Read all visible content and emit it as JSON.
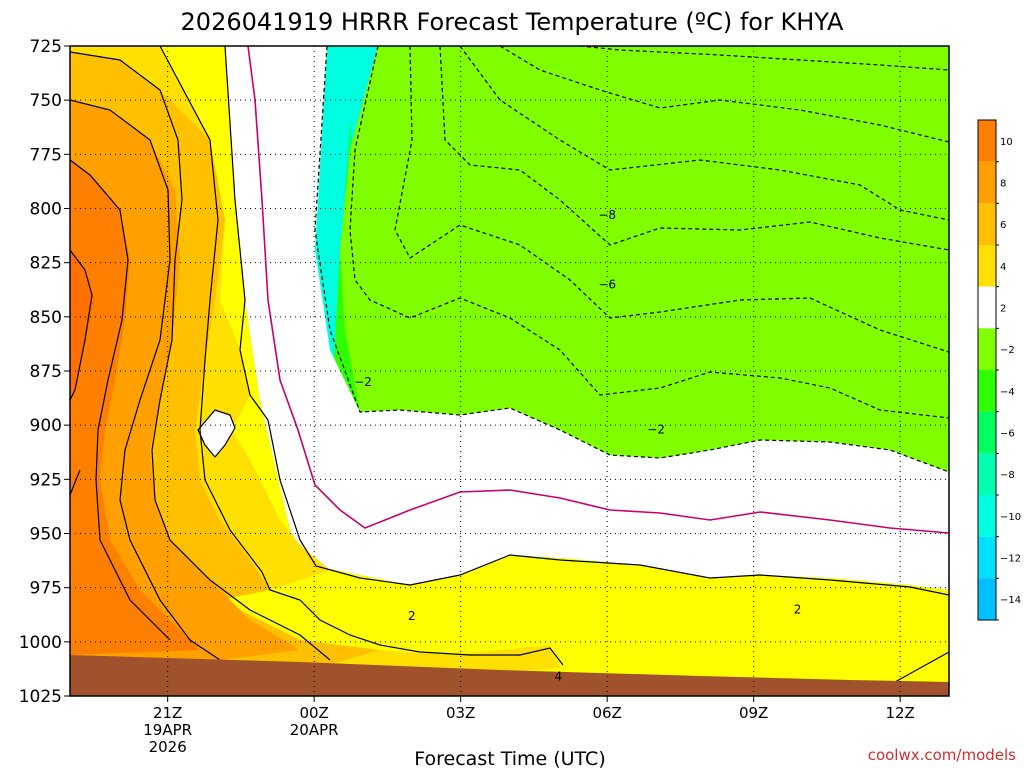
{
  "chart_data": {
    "type": "filled-contour",
    "title": "2026041919 HRRR Forecast Temperature (ºC) for KHYA",
    "xlabel": "Forecast Time (UTC)",
    "ylabel": "",
    "y_ticks": [
      "725",
      "750",
      "775",
      "800",
      "825",
      "850",
      "875",
      "900",
      "925",
      "950",
      "975",
      "1000",
      "1025"
    ],
    "ylim": [
      725,
      1025
    ],
    "y_reversed": true,
    "x_ticks": [
      {
        "hour": 2,
        "label": "21Z",
        "date": "19APR",
        "year": "2026"
      },
      {
        "hour": 5,
        "label": "00Z",
        "date": "20APR",
        "year": ""
      },
      {
        "hour": 8,
        "label": "03Z",
        "date": "",
        "year": ""
      },
      {
        "hour": 11,
        "label": "06Z",
        "date": "",
        "year": ""
      },
      {
        "hour": 14,
        "label": "09Z",
        "date": "",
        "year": ""
      },
      {
        "hour": 17,
        "label": "12Z",
        "date": "",
        "year": ""
      }
    ],
    "xlim": [
      0,
      18
    ],
    "contour_labels": [
      {
        "text": "−8",
        "hour": 11,
        "p": 803
      },
      {
        "text": "−6",
        "hour": 11,
        "p": 835
      },
      {
        "text": "−2",
        "hour": 6,
        "p": 880
      },
      {
        "text": "−2",
        "hour": 12,
        "p": 902
      },
      {
        "text": "2",
        "hour": 7,
        "p": 988
      },
      {
        "text": "2",
        "hour": 14.9,
        "p": 985
      },
      {
        "text": "4",
        "hour": 10,
        "p": 1016
      }
    ],
    "colorbar": {
      "labels": [
        "10",
        "8",
        "6",
        "4",
        "2",
        "−2",
        "−4",
        "−6",
        "−8",
        "−10",
        "−12",
        "−14"
      ],
      "colors": [
        "#ff8000",
        "#ffa000",
        "#ffc000",
        "#ffe000",
        "#ffffff",
        "#80ff00",
        "#30ff00",
        "#00ff60",
        "#00ffb0",
        "#00ffe0",
        "#00e0ff",
        "#00c0ff"
      ]
    },
    "grid": true,
    "ground_color": "#a0522d"
  },
  "footer": {
    "credit": "coolwx.com/models"
  }
}
